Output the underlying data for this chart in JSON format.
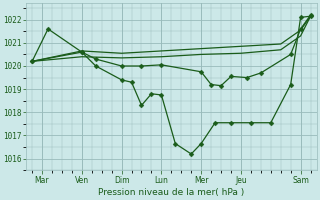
{
  "background_color": "#cce8e8",
  "grid_color": "#99bbbb",
  "line_color": "#1a5c1a",
  "xlabel": "Pression niveau de la mer( hPa )",
  "yticks": [
    1016,
    1017,
    1018,
    1019,
    1020,
    1021,
    1022
  ],
  "ylim": [
    1015.5,
    1022.7
  ],
  "xlim": [
    -0.3,
    14.3
  ],
  "day_labels": [
    "Mar",
    "Ven",
    "Dim",
    "Lun",
    "Mer",
    "Jeu",
    "Sam"
  ],
  "day_positions": [
    0.5,
    2.5,
    4.5,
    6.5,
    8.5,
    10.5,
    13.5
  ],
  "series1_marked": {
    "x": [
      0.0,
      0.8,
      2.5,
      3.2,
      4.5,
      5.0,
      5.5,
      6.0,
      6.5,
      7.2,
      8.0,
      8.5,
      9.2,
      10.0,
      11.0,
      12.0,
      13.0,
      13.5,
      14.0
    ],
    "y": [
      1020.2,
      1021.6,
      1020.6,
      1020.0,
      1019.4,
      1019.3,
      1018.3,
      1018.8,
      1018.75,
      1016.65,
      1016.2,
      1016.65,
      1017.55,
      1017.55,
      1017.55,
      1017.55,
      1019.2,
      1022.1,
      1022.15
    ]
  },
  "series2_marked": {
    "x": [
      0.0,
      2.5,
      3.2,
      4.5,
      5.5,
      6.5,
      8.5,
      9.0,
      9.5,
      10.0,
      10.8,
      11.5,
      13.0,
      13.5,
      14.0
    ],
    "y": [
      1020.2,
      1020.6,
      1020.3,
      1020.0,
      1020.0,
      1020.05,
      1019.75,
      1019.2,
      1019.15,
      1019.55,
      1019.5,
      1019.7,
      1020.5,
      1021.6,
      1022.2
    ]
  },
  "series3_smooth": {
    "x": [
      0.0,
      2.5,
      4.5,
      6.5,
      8.5,
      10.5,
      12.5,
      13.5,
      14.0
    ],
    "y": [
      1020.2,
      1020.65,
      1020.55,
      1020.65,
      1020.75,
      1020.85,
      1020.95,
      1021.55,
      1022.15
    ]
  },
  "series4_smooth": {
    "x": [
      0.0,
      2.5,
      4.5,
      6.5,
      8.5,
      10.5,
      12.5,
      13.5,
      14.0
    ],
    "y": [
      1020.2,
      1020.4,
      1020.35,
      1020.4,
      1020.5,
      1020.55,
      1020.7,
      1021.3,
      1022.15
    ]
  }
}
